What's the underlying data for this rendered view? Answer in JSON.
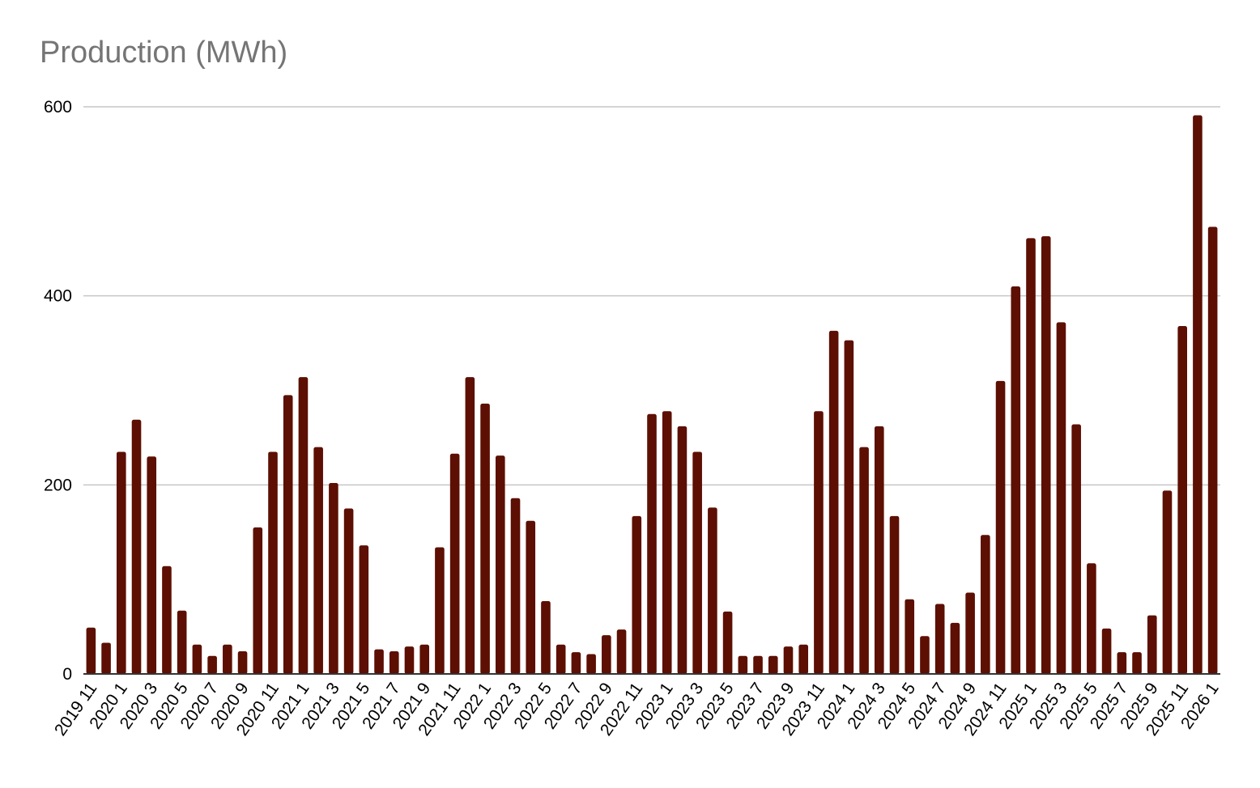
{
  "chart_data": {
    "type": "bar",
    "title": "Production (MWh)",
    "xlabel": "",
    "ylabel": "",
    "ylim": [
      0,
      600
    ],
    "yticks": [
      0,
      200,
      400,
      600
    ],
    "grid": true,
    "legend": "none",
    "bar_color": "#5c0f02",
    "categories": [
      "2019 11",
      "2019 12",
      "2020 1",
      "2020 2",
      "2020 3",
      "2020 4",
      "2020 5",
      "2020 6",
      "2020 7",
      "2020 8",
      "2020 9",
      "2020 10",
      "2020 11",
      "2020 12",
      "2021 1",
      "2021 2",
      "2021 3",
      "2021 4",
      "2021 5",
      "2021 6",
      "2021 7",
      "2021 8",
      "2021 9",
      "2021 10",
      "2021 11",
      "2021 12",
      "2022 1",
      "2022 2",
      "2022 3",
      "2022 4",
      "2022 5",
      "2022 6",
      "2022 7",
      "2022 8",
      "2022 9",
      "2022 10",
      "2022 11",
      "2022 12",
      "2023 1",
      "2023 2",
      "2023 3",
      "2023 4",
      "2023 5",
      "2023 6",
      "2023 7",
      "2023 8",
      "2023 9",
      "2023 10",
      "2023 11",
      "2023 12",
      "2024 1",
      "2024 2",
      "2024 3",
      "2024 4",
      "2024 5",
      "2024 6",
      "2024 7",
      "2024 8",
      "2024 9",
      "2024 10",
      "2024 11",
      "2024 12",
      "2025 1",
      "2025 2",
      "2025 3",
      "2025 4",
      "2025 5",
      "2025 6",
      "2025 7",
      "2025 8",
      "2025 9",
      "2025 10",
      "2025 11",
      "2025 12",
      "2026 1"
    ],
    "values": [
      49,
      33,
      235,
      269,
      230,
      114,
      67,
      31,
      19,
      31,
      24,
      155,
      235,
      295,
      314,
      240,
      202,
      175,
      136,
      26,
      24,
      29,
      31,
      134,
      233,
      314,
      286,
      231,
      186,
      162,
      77,
      31,
      23,
      21,
      41,
      47,
      167,
      275,
      278,
      262,
      235,
      176,
      66,
      19,
      19,
      19,
      29,
      31,
      278,
      363,
      353,
      240,
      262,
      167,
      79,
      40,
      74,
      54,
      86,
      147,
      310,
      410,
      461,
      463,
      372,
      264,
      117,
      48,
      23,
      23,
      62,
      194,
      368,
      591,
      473
    ]
  }
}
